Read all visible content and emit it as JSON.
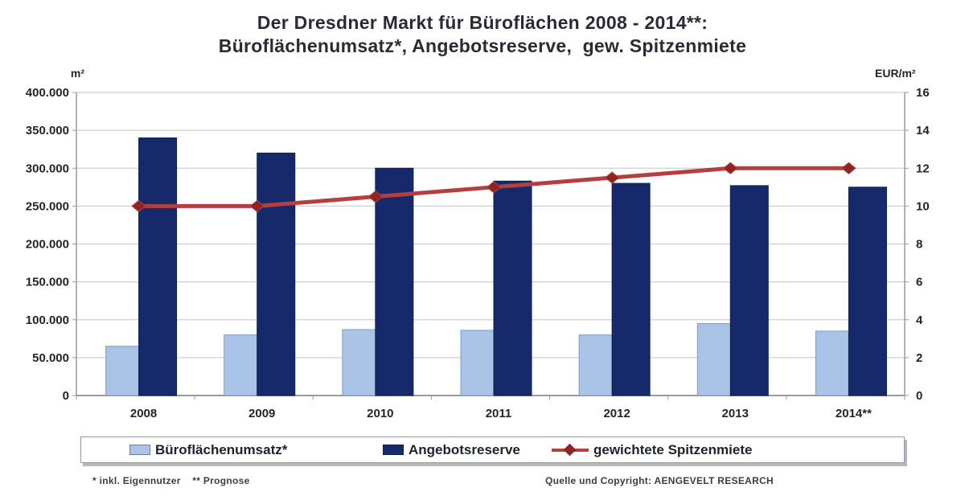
{
  "title": {
    "line1": "Der Dresdner Markt für Büroflächen 2008 - 2014**:",
    "line2": "Büroflächenumsatz*, Angebotsreserve,  gew. Spitzenmiete"
  },
  "chart_data": {
    "type": "bar",
    "subtype": "grouped bars with overlaid line on secondary axis",
    "categories": [
      "2008",
      "2009",
      "2010",
      "2011",
      "2012",
      "2013",
      "2014**"
    ],
    "series": [
      {
        "name": "Büroflächenumsatz*",
        "kind": "bar",
        "axis": "left",
        "color": "#a9c4e6",
        "edge_color": "#7f9cc4",
        "values": [
          65000,
          80000,
          87000,
          86000,
          80000,
          95000,
          85000
        ]
      },
      {
        "name": "Angebotsreserve",
        "kind": "bar",
        "axis": "left",
        "color": "#15296b",
        "edge_color": "#0e1f52",
        "values": [
          340000,
          320000,
          300000,
          283000,
          280000,
          277000,
          275000
        ]
      },
      {
        "name": "gewichtete Spitzenmiete",
        "kind": "line",
        "axis": "right",
        "color": "#b43f3f",
        "marker_color": "#8e2424",
        "marker": "diamond",
        "values": [
          10.0,
          10.0,
          10.5,
          11.0,
          11.5,
          12.0,
          12.0
        ]
      }
    ],
    "left_axis": {
      "unit": "m²",
      "min": 0,
      "max": 400000,
      "tick_step": 50000,
      "tick_labels": [
        "400.000",
        "350.000",
        "300.000",
        "250.000",
        "200.000",
        "150.000",
        "100.000",
        "50.000",
        "0"
      ]
    },
    "right_axis": {
      "unit": "EUR/m²",
      "min": 0,
      "max": 16,
      "tick_step": 2,
      "tick_labels": [
        "16",
        "14",
        "12",
        "10",
        "8",
        "6",
        "4",
        "2",
        "0"
      ]
    },
    "grid": true,
    "legend_position": "bottom"
  },
  "footnotes": {
    "left": "* inkl. Eigennutzer    ** Prognose",
    "right": "Quelle und Copyright: AENGEVELT RESEARCH"
  }
}
